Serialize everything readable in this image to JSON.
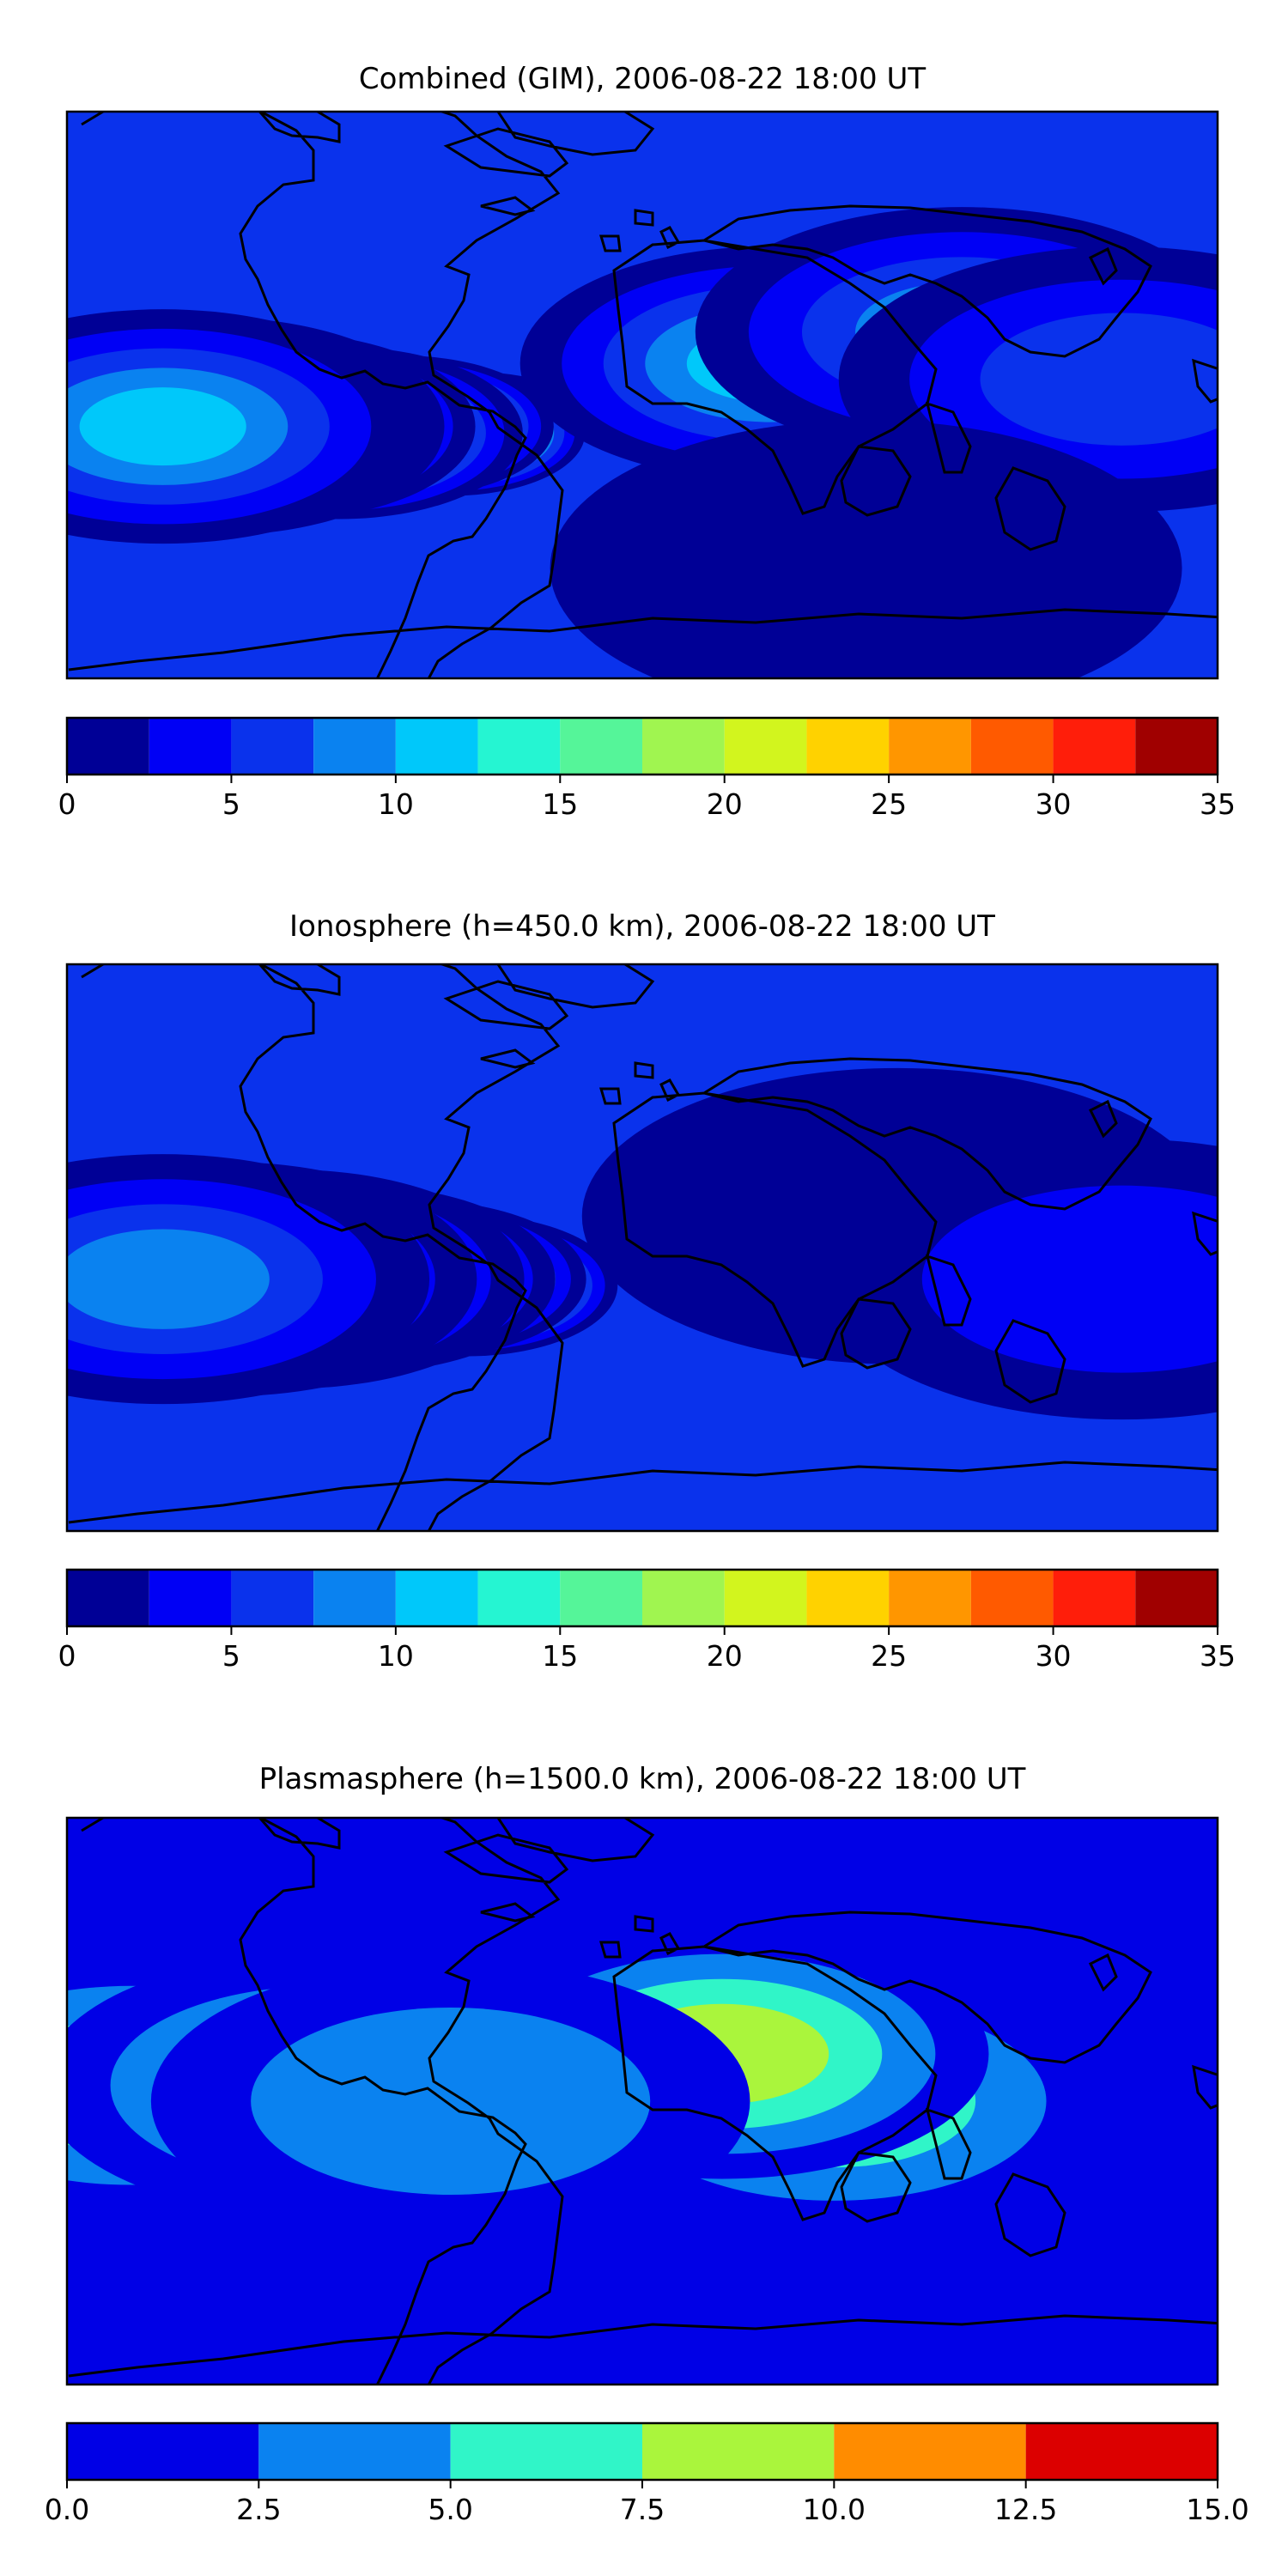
{
  "chart_data": [
    {
      "type": "heatmap",
      "title": "Combined (GIM), 2006-08-22 18:00 UT",
      "colorbar": {
        "levels": [
          0,
          2.5,
          5,
          7.5,
          10,
          12.5,
          15,
          17.5,
          20,
          22.5,
          25,
          27.5,
          30,
          32.5,
          35
        ],
        "tick_values": [
          0,
          5,
          10,
          15,
          20,
          25,
          30,
          35
        ],
        "tick_labels": [
          "0",
          "5",
          "10",
          "15",
          "20",
          "25",
          "30",
          "35"
        ],
        "colors": [
          "#000096",
          "#0000f5",
          "#0a32ec",
          "#0a82f0",
          "#00c8fa",
          "#25f5d2",
          "#55f599",
          "#a0f550",
          "#d2f51e",
          "#ffd200",
          "#ff9600",
          "#ff5a00",
          "#ff1e0a",
          "#a00000"
        ]
      },
      "features": [
        {
          "lon": -50,
          "lat": -8,
          "level": 13
        },
        {
          "lon": -60,
          "lat": -12,
          "level": 11
        },
        {
          "lon": -75,
          "lat": -10,
          "level": 10
        },
        {
          "lon": -95,
          "lat": -12,
          "level": 8
        },
        {
          "lon": -115,
          "lat": -10,
          "level": 7
        },
        {
          "lon": -135,
          "lat": -10,
          "level": 5
        },
        {
          "lon": -150,
          "lat": -10,
          "level": 4
        },
        {
          "lon": 40,
          "lat": 10,
          "level": 4
        },
        {
          "lon": 100,
          "lat": 20,
          "level": 3
        },
        {
          "lon": 150,
          "lat": 5,
          "level": 2
        },
        {
          "lon": 70,
          "lat": -55,
          "level": 0
        }
      ]
    },
    {
      "type": "heatmap",
      "title": "Ionosphere  (h=450.0 km), 2006-08-22 18:00 UT",
      "colorbar": {
        "levels": [
          0,
          2.5,
          5,
          7.5,
          10,
          12.5,
          15,
          17.5,
          20,
          22.5,
          25,
          27.5,
          30,
          32.5,
          35
        ],
        "tick_values": [
          0,
          5,
          10,
          15,
          20,
          25,
          30,
          35
        ],
        "tick_labels": [
          "0",
          "5",
          "10",
          "15",
          "20",
          "25",
          "30",
          "35"
        ],
        "colors": [
          "#000096",
          "#0000f5",
          "#0a32ec",
          "#0a82f0",
          "#00c8fa",
          "#25f5d2",
          "#55f599",
          "#a0f550",
          "#d2f51e",
          "#ffd200",
          "#ff9600",
          "#ff5a00",
          "#ff1e0a",
          "#a00000"
        ]
      },
      "features": [
        {
          "lon": -55,
          "lat": -12,
          "level": 10
        },
        {
          "lon": -70,
          "lat": -10,
          "level": 9
        },
        {
          "lon": -90,
          "lat": -10,
          "level": 7
        },
        {
          "lon": -110,
          "lat": -10,
          "level": 5
        },
        {
          "lon": -130,
          "lat": -10,
          "level": 4
        },
        {
          "lon": -150,
          "lat": -10,
          "level": 3
        },
        {
          "lon": 80,
          "lat": 10,
          "level": 0
        },
        {
          "lon": 150,
          "lat": -10,
          "level": 1
        }
      ]
    },
    {
      "type": "heatmap",
      "title": "Plasmasphere (h=1500.0 km), 2006-08-22 18:00 UT",
      "colorbar": {
        "levels": [
          0,
          2.5,
          5,
          7.5,
          10,
          12.5,
          15
        ],
        "tick_values": [
          0,
          2.5,
          5,
          7.5,
          10,
          12.5,
          15
        ],
        "tick_labels": [
          "0.0",
          "2.5",
          "5.0",
          "7.5",
          "10.0",
          "12.5",
          "15.0"
        ],
        "colors": [
          "#0000e6",
          "#0a82f0",
          "#30f5c8",
          "#aaf53c",
          "#ff8c00",
          "#dc0000"
        ]
      },
      "features": [
        {
          "lon": 60,
          "lat": 0,
          "level": 2
        },
        {
          "lon": 25,
          "lat": 15,
          "level": 3
        },
        {
          "lon": -160,
          "lat": 5,
          "level": 2
        },
        {
          "lon": -100,
          "lat": 5,
          "level": 2
        },
        {
          "lon": -60,
          "lat": 0,
          "level": 1
        }
      ]
    }
  ]
}
